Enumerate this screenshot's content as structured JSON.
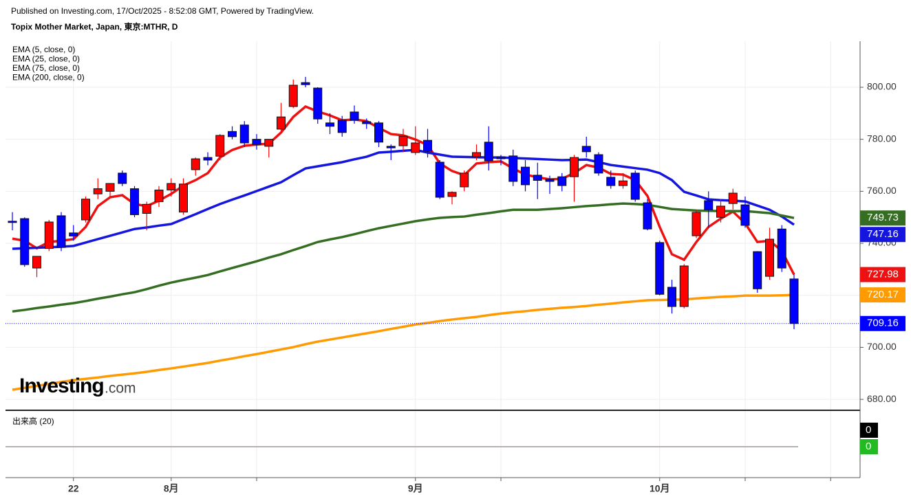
{
  "header": {
    "published": "Published on Investing.com, 17/Oct/2025 - 8:52:08 GMT, Powered by TradingView.",
    "symbol": "Topix Mother Market, Japan, 東京:MTHR, D"
  },
  "watermark": {
    "brand": "Investing",
    "suffix": ".com"
  },
  "chart_data": {
    "type": "candlestick",
    "categories": [
      null,
      null,
      null,
      null,
      null,
      "22",
      null,
      null,
      null,
      null,
      null,
      null,
      null,
      "8月",
      null,
      null,
      null,
      null,
      null,
      null,
      null,
      null,
      null,
      null,
      null,
      null,
      null,
      null,
      null,
      null,
      null,
      null,
      null,
      "9月",
      null,
      null,
      null,
      null,
      null,
      null,
      null,
      null,
      null,
      null,
      null,
      null,
      null,
      null,
      null,
      null,
      null,
      null,
      null,
      "10月",
      null,
      null,
      null,
      null,
      null,
      null,
      null,
      null,
      null,
      null,
      null
    ],
    "open": [
      748.5,
      749.5,
      730.5,
      738,
      750.6,
      744,
      749,
      759,
      760,
      767,
      761,
      751.5,
      756,
      760.5,
      752,
      768.3,
      773,
      773.5,
      783,
      785.5,
      780,
      777.3,
      783.9,
      792.6,
      801.8,
      799.7,
      786.3,
      787.3,
      790.5,
      786.8,
      786.3,
      777.3,
      777.5,
      774.9,
      779.6,
      771.2,
      758,
      761.7,
      773.3,
      778.9,
      773.3,
      773.6,
      769.3,
      766.2,
      764.6,
      765.6,
      765.6,
      777.3,
      774.1,
      765.4,
      762.2,
      767,
      755.6,
      740.3,
      723.1,
      715.7,
      742.9,
      756.4,
      750,
      755.3,
      754.8,
      736.8,
      727.3,
      745.5,
      726.3
    ],
    "high": [
      752,
      750,
      735,
      749,
      752,
      747,
      758,
      765,
      763,
      768,
      762,
      756,
      762,
      765,
      765,
      773,
      775,
      782,
      785,
      787,
      782,
      780,
      794,
      803,
      804,
      800,
      790,
      789,
      793,
      788,
      787,
      778,
      784,
      785,
      784,
      772,
      760,
      768,
      778,
      785,
      774,
      776,
      772,
      771,
      766,
      767,
      774,
      781,
      775,
      768,
      767,
      768,
      757,
      741,
      726,
      732,
      753,
      760,
      757,
      761,
      758,
      737,
      746,
      747,
      728
    ],
    "low": [
      745,
      731,
      727,
      737,
      737,
      741,
      748,
      757,
      758,
      762,
      750,
      745,
      754,
      758,
      751,
      766,
      770,
      772,
      780,
      777,
      776,
      773,
      783,
      792,
      800,
      786,
      782,
      781,
      786,
      784,
      777,
      772,
      775,
      774,
      773,
      757,
      755,
      760,
      772,
      768,
      770,
      762,
      760,
      757,
      759,
      760,
      756,
      773,
      766,
      761,
      761,
      756,
      745,
      720,
      713,
      715,
      742,
      746,
      748,
      753,
      746,
      721,
      726,
      729,
      707
    ],
    "close": [
      748,
      731.8,
      735,
      748.2,
      738.4,
      742.8,
      757,
      761,
      763,
      763,
      751,
      755,
      760.5,
      763,
      762.8,
      772.5,
      772,
      781.5,
      781,
      778.6,
      778,
      780,
      788.6,
      800.8,
      801,
      787.8,
      785,
      782.6,
      787.3,
      786,
      778.9,
      776.7,
      781.2,
      778.6,
      775.4,
      757.7,
      759.6,
      767,
      774.9,
      771.7,
      772.5,
      763.8,
      762.5,
      764.2,
      763.8,
      762.2,
      773,
      775.2,
      767,
      762.2,
      764,
      756.9,
      745.5,
      720.4,
      715.7,
      731.3,
      751.9,
      752.9,
      754.3,
      759.3,
      746.9,
      722.5,
      741.6,
      730.5,
      709.16
    ],
    "up_color": "#ff0000",
    "down_color": "#0000ff",
    "series": [
      {
        "name": "EMA (5, close, 0)",
        "color": "#ee1111",
        "values": [
          741.8,
          741,
          738.1,
          740.5,
          741,
          741.6,
          746.3,
          754.3,
          757.7,
          758.5,
          755.1,
          754.3,
          756.4,
          759,
          762.2,
          764.3,
          767,
          773,
          775.9,
          777.5,
          778,
          778.3,
          782.6,
          788.6,
          792.6,
          790.7,
          789.2,
          787.3,
          787.6,
          787,
          784.4,
          782,
          781.5,
          779.9,
          777.8,
          770.7,
          767.8,
          766.2,
          770.7,
          771.2,
          771.5,
          768.8,
          766.4,
          765.4,
          764.6,
          764.8,
          767,
          770.1,
          769.1,
          766.7,
          766.4,
          764.3,
          758.2,
          746.3,
          735.8,
          733.7,
          740.5,
          746.3,
          749.5,
          752.2,
          747.7,
          740.5,
          741,
          737.1,
          727.98
        ]
      },
      {
        "name": "EMA (25, close, 0)",
        "color": "#1515e0",
        "values": [
          737.9,
          738.1,
          738.3,
          738.5,
          738.7,
          739,
          740.3,
          741.6,
          742.9,
          744.2,
          745.5,
          746.1,
          746.8,
          747.4,
          749.3,
          751.2,
          753.2,
          755.1,
          756.8,
          758.4,
          760.1,
          761.8,
          763.5,
          766.2,
          768.8,
          769.6,
          770.4,
          771.2,
          772.3,
          773.3,
          774.9,
          775.2,
          775.6,
          775.9,
          774.9,
          774.1,
          773.3,
          773.2,
          773.1,
          773,
          773,
          772.8,
          772.6,
          772.4,
          772.2,
          772,
          772.1,
          772.2,
          771.2,
          770.1,
          769.5,
          768.9,
          768.3,
          767,
          764.3,
          759.8,
          758.4,
          756.9,
          756.6,
          756.4,
          756.1,
          754.5,
          752.9,
          750.3,
          747.16
        ]
      },
      {
        "name": "EMA (75, close, 0)",
        "color": "#356e22",
        "values": [
          713.8,
          714.4,
          715.1,
          715.7,
          716.4,
          717,
          717.8,
          718.7,
          719.5,
          720.4,
          721.2,
          722.4,
          723.7,
          724.9,
          725.9,
          726.8,
          727.8,
          729.2,
          730.5,
          731.8,
          733.1,
          734.5,
          735.8,
          737.4,
          738.9,
          740.5,
          741.5,
          742.4,
          743.5,
          744.7,
          745.8,
          746.7,
          747.6,
          748.5,
          749.2,
          749.8,
          750.1,
          750.3,
          751,
          751.6,
          752.3,
          752.9,
          752.9,
          752.9,
          753.2,
          753.5,
          753.9,
          754.3,
          754.6,
          755,
          755.3,
          755.1,
          754.8,
          754,
          753.2,
          752.9,
          752.6,
          752.5,
          752.4,
          752.4,
          752.4,
          752,
          751.6,
          750.7,
          749.73
        ]
      },
      {
        "name": "EMA (200, close, 0)",
        "color": "#ff9a00",
        "values": [
          683.7,
          684.4,
          685.2,
          685.9,
          686.7,
          687.4,
          687.9,
          688.4,
          689,
          689.5,
          690,
          690.6,
          691.3,
          691.9,
          692.6,
          693.3,
          694,
          694.9,
          695.7,
          696.6,
          697.4,
          698.3,
          699.2,
          700.1,
          701.2,
          702.2,
          703,
          703.8,
          704.6,
          705.4,
          706.2,
          707.1,
          707.9,
          708.8,
          709.4,
          710.1,
          710.7,
          711.2,
          711.7,
          712.4,
          713,
          713.5,
          713.9,
          714.4,
          714.8,
          715.2,
          715.5,
          715.9,
          716.4,
          716.8,
          717.3,
          717.7,
          718.1,
          718.2,
          718.3,
          718.4,
          718.8,
          719.1,
          719.4,
          719.6,
          719.9,
          719.9,
          719.9,
          720,
          720.17
        ]
      }
    ],
    "last_price_color": "#0000ff",
    "ylim": [
      675.8,
      817.7
    ],
    "yticks": [
      {
        "value": 680,
        "label": "680.00"
      },
      {
        "value": 700,
        "label": "700.00"
      },
      {
        "value": 720,
        "label": "720.00"
      },
      {
        "value": 740,
        "label": "740.00"
      },
      {
        "value": 760,
        "label": "760.00"
      },
      {
        "value": 780,
        "label": "780.00"
      },
      {
        "value": 800,
        "label": "800.00"
      }
    ],
    "grid": true
  },
  "volume_pane": {
    "title": "出来高 (20)",
    "value_labels": [
      0,
      0
    ],
    "label_colors": [
      "#000000",
      "#22bb22"
    ]
  }
}
